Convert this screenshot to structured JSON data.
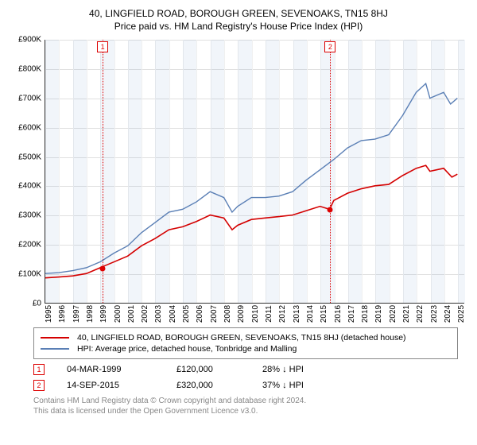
{
  "title_line1": "40, LINGFIELD ROAD, BOROUGH GREEN, SEVENOAKS, TN15 8HJ",
  "title_line2": "Price paid vs. HM Land Registry's House Price Index (HPI)",
  "chart": {
    "type": "line",
    "background_color": "#ffffff",
    "grid_color": "#e0e0e0",
    "grid_color_v": "#f0f0f0",
    "x_years": [
      1995,
      1996,
      1997,
      1998,
      1999,
      2000,
      2001,
      2002,
      2003,
      2004,
      2005,
      2006,
      2007,
      2008,
      2009,
      2010,
      2011,
      2012,
      2013,
      2014,
      2015,
      2016,
      2017,
      2018,
      2019,
      2020,
      2021,
      2022,
      2023,
      2024,
      2025
    ],
    "xlim": [
      1995,
      2025.5
    ],
    "ylim": [
      0,
      900
    ],
    "ytick_step": 100,
    "ytick_labels": [
      "£0",
      "£100K",
      "£200K",
      "£300K",
      "£400K",
      "£500K",
      "£600K",
      "£700K",
      "£800K",
      "£900K"
    ],
    "xtick_fontsize": 10,
    "ytick_fontsize": 10,
    "shaded_bands_x": [
      [
        1995,
        1996
      ],
      [
        1997,
        1998
      ],
      [
        1999,
        2000
      ],
      [
        2001,
        2002
      ],
      [
        2003,
        2004
      ],
      [
        2005,
        2006
      ],
      [
        2007,
        2008
      ],
      [
        2009,
        2010
      ],
      [
        2011,
        2012
      ],
      [
        2013,
        2014
      ],
      [
        2015,
        2016
      ],
      [
        2017,
        2018
      ],
      [
        2019,
        2020
      ],
      [
        2021,
        2022
      ],
      [
        2023,
        2024
      ],
      [
        2025,
        2025.5
      ]
    ],
    "series": [
      {
        "name": "price_paid",
        "color": "#d40000",
        "line_width": 1.6,
        "points": [
          [
            1995,
            85
          ],
          [
            1996,
            88
          ],
          [
            1997,
            92
          ],
          [
            1998,
            100
          ],
          [
            1999,
            120
          ],
          [
            2000,
            140
          ],
          [
            2001,
            160
          ],
          [
            2002,
            195
          ],
          [
            2003,
            220
          ],
          [
            2004,
            250
          ],
          [
            2005,
            260
          ],
          [
            2006,
            278
          ],
          [
            2007,
            300
          ],
          [
            2008,
            290
          ],
          [
            2008.6,
            250
          ],
          [
            2009,
            265
          ],
          [
            2010,
            285
          ],
          [
            2011,
            290
          ],
          [
            2012,
            295
          ],
          [
            2013,
            300
          ],
          [
            2014,
            315
          ],
          [
            2015,
            330
          ],
          [
            2015.7,
            320
          ],
          [
            2016,
            350
          ],
          [
            2017,
            375
          ],
          [
            2018,
            390
          ],
          [
            2019,
            400
          ],
          [
            2020,
            405
          ],
          [
            2021,
            435
          ],
          [
            2022,
            460
          ],
          [
            2022.7,
            470
          ],
          [
            2023,
            450
          ],
          [
            2024,
            460
          ],
          [
            2024.6,
            430
          ],
          [
            2025,
            440
          ]
        ]
      },
      {
        "name": "hpi",
        "color": "#5a7fb5",
        "line_width": 1.4,
        "points": [
          [
            1995,
            100
          ],
          [
            1996,
            103
          ],
          [
            1997,
            110
          ],
          [
            1998,
            120
          ],
          [
            1999,
            140
          ],
          [
            2000,
            170
          ],
          [
            2001,
            195
          ],
          [
            2002,
            240
          ],
          [
            2003,
            275
          ],
          [
            2004,
            310
          ],
          [
            2005,
            320
          ],
          [
            2006,
            345
          ],
          [
            2007,
            380
          ],
          [
            2008,
            360
          ],
          [
            2008.6,
            310
          ],
          [
            2009,
            330
          ],
          [
            2010,
            360
          ],
          [
            2011,
            360
          ],
          [
            2012,
            365
          ],
          [
            2013,
            380
          ],
          [
            2014,
            420
          ],
          [
            2015,
            455
          ],
          [
            2016,
            490
          ],
          [
            2017,
            530
          ],
          [
            2018,
            555
          ],
          [
            2019,
            560
          ],
          [
            2020,
            575
          ],
          [
            2021,
            640
          ],
          [
            2022,
            720
          ],
          [
            2022.7,
            750
          ],
          [
            2023,
            700
          ],
          [
            2024,
            720
          ],
          [
            2024.5,
            680
          ],
          [
            2025,
            700
          ]
        ]
      }
    ],
    "sale_markers": [
      {
        "n": "1",
        "x": 1999.17,
        "y": 120
      },
      {
        "n": "2",
        "x": 2015.7,
        "y": 320
      }
    ]
  },
  "legend": {
    "items": [
      {
        "label": "40, LINGFIELD ROAD, BOROUGH GREEN, SEVENOAKS, TN15 8HJ (detached house)",
        "color": "#d40000"
      },
      {
        "label": "HPI: Average price, detached house, Tonbridge and Malling",
        "color": "#5a7fb5"
      }
    ]
  },
  "sales": [
    {
      "n": "1",
      "date": "04-MAR-1999",
      "price": "£120,000",
      "delta": "28% ↓ HPI"
    },
    {
      "n": "2",
      "date": "14-SEP-2015",
      "price": "£320,000",
      "delta": "37% ↓ HPI"
    }
  ],
  "footer_line1": "Contains HM Land Registry data © Crown copyright and database right 2024.",
  "footer_line2": "This data is licensed under the Open Government Licence v3.0."
}
